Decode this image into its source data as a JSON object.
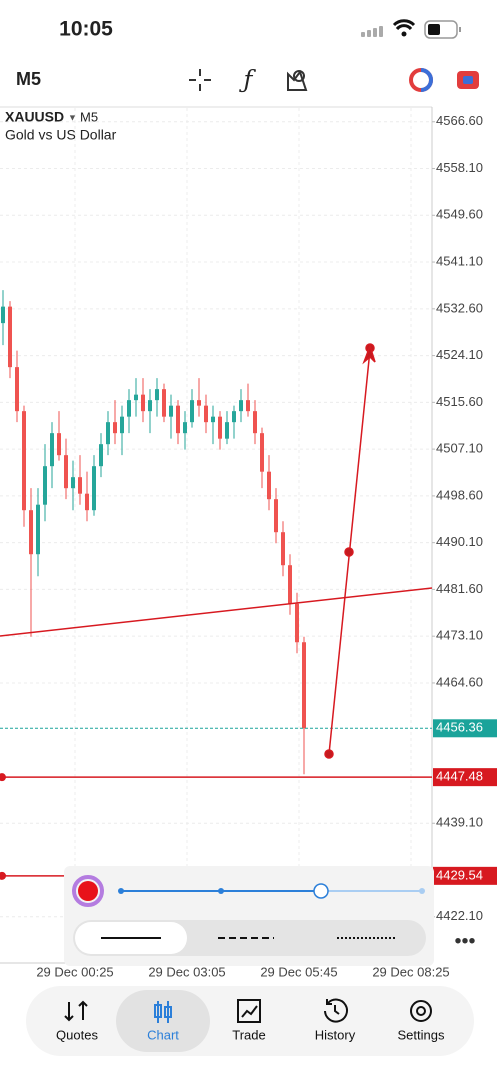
{
  "status_bar": {
    "time": "10:05"
  },
  "toolbar": {
    "timeframe": "M5"
  },
  "chart_data": {
    "type": "candlestick",
    "symbol": "XAUUSD",
    "timeframe": "M5",
    "subtitle": "Gold vs US Dollar",
    "categories": [
      null,
      null,
      null,
      null,
      null,
      null,
      null,
      null,
      null,
      null,
      null,
      null,
      null,
      null,
      null,
      null,
      null,
      null,
      null,
      null,
      null,
      null,
      null,
      null,
      null,
      null,
      null,
      null,
      null,
      null,
      null,
      null,
      null,
      null,
      null,
      null,
      null,
      null,
      null,
      null,
      null,
      null,
      null,
      null
    ],
    "open": [
      4530,
      4533,
      4522,
      4514,
      4496,
      4488,
      4497,
      4504,
      4510,
      4506,
      4500,
      4502,
      4499,
      4496,
      4504,
      4508,
      4512,
      4510,
      4513,
      4516,
      4517,
      4514,
      4516,
      4518,
      4513,
      4515,
      4510,
      4512,
      4516,
      4515,
      4512,
      4513,
      4509,
      4512,
      4514,
      4516,
      4514,
      4510,
      4503,
      4498,
      4492,
      4486,
      4479,
      4472
    ],
    "high": [
      4536,
      4534,
      4525,
      4515,
      4500,
      4500,
      4508,
      4512,
      4514,
      4509,
      4505,
      4506,
      4503,
      4506,
      4510,
      4514,
      4516,
      4515,
      4518,
      4520,
      4520,
      4518,
      4520,
      4519,
      4517,
      4516,
      4514,
      4518,
      4520,
      4517,
      4515,
      4514,
      4514,
      4515,
      4518,
      4519,
      4516,
      4511,
      4506,
      4500,
      4494,
      4488,
      4481,
      4473
    ],
    "low": [
      4526,
      4520,
      4512,
      4493,
      4473,
      4484,
      4494,
      4500,
      4505,
      4498,
      4496,
      4497,
      4494,
      4495,
      4502,
      4506,
      4508,
      4506,
      4510,
      4513,
      4512,
      4510,
      4513,
      4512,
      4509,
      4508,
      4507,
      4511,
      4513,
      4510,
      4508,
      4507,
      4508,
      4509,
      4512,
      4513,
      4508,
      4500,
      4496,
      4490,
      4484,
      4477,
      4470,
      4448
    ],
    "close": [
      4533,
      4522,
      4514,
      4496,
      4488,
      4497,
      4504,
      4510,
      4506,
      4500,
      4502,
      4499,
      4496,
      4504,
      4508,
      4512,
      4510,
      4513,
      4516,
      4517,
      4514,
      4516,
      4518,
      4513,
      4515,
      4510,
      4512,
      4516,
      4515,
      4512,
      4513,
      4509,
      4512,
      4514,
      4516,
      4514,
      4510,
      4503,
      4498,
      4492,
      4486,
      4479,
      4472,
      4456.36
    ],
    "up_color": "#26a69a",
    "down_color": "#ef5350",
    "ylim": [
      4413.7,
      4569.1
    ],
    "yticks": [
      {
        "value": 4566.6,
        "label": "4566.60"
      },
      {
        "value": 4558.1,
        "label": "4558.10"
      },
      {
        "value": 4549.6,
        "label": "4549.60"
      },
      {
        "value": 4541.1,
        "label": "4541.10"
      },
      {
        "value": 4532.6,
        "label": "4532.60"
      },
      {
        "value": 4524.1,
        "label": "4524.10"
      },
      {
        "value": 4515.6,
        "label": "4515.60"
      },
      {
        "value": 4507.1,
        "label": "4507.10"
      },
      {
        "value": 4498.6,
        "label": "4498.60"
      },
      {
        "value": 4490.1,
        "label": "4490.10"
      },
      {
        "value": 4481.6,
        "label": "4481.60"
      },
      {
        "value": 4473.1,
        "label": "4473.10"
      },
      {
        "value": 4464.6,
        "label": "4464.60"
      },
      {
        "value": 4439.1,
        "label": "4439.10"
      },
      {
        "value": 4422.1,
        "label": "4422.10"
      }
    ],
    "x_labels": [
      "29 Dec 00:25",
      "29 Dec 03:05",
      "29 Dec 05:45",
      "29 Dec 08:25"
    ],
    "grid": true,
    "price_lines": [
      {
        "value": 4456.36,
        "color": "#1aa39a",
        "style": "dashed"
      },
      {
        "value": 4447.48,
        "color": "#d71920",
        "style": "solid"
      },
      {
        "value": 4429.54,
        "color": "#d71920",
        "style": "short"
      }
    ]
  },
  "nav": {
    "items": [
      "Quotes",
      "Chart",
      "Trade",
      "History",
      "Settings"
    ],
    "selected": 1
  }
}
